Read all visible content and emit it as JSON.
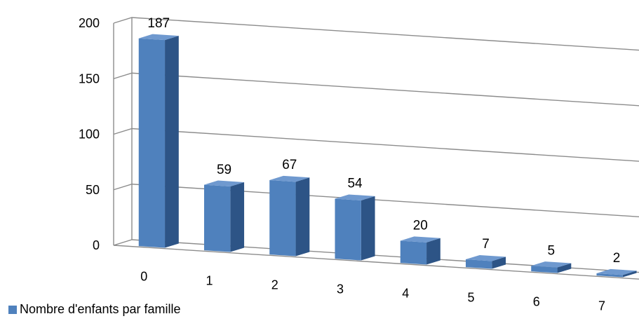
{
  "chart_data": {
    "type": "bar",
    "style": "3d-column",
    "categories": [
      "0",
      "1",
      "2",
      "3",
      "4",
      "5",
      "6",
      "7"
    ],
    "series": [
      {
        "name": "Nombre d'enfants par famille",
        "values": [
          187,
          59,
          67,
          54,
          20,
          7,
          5,
          2
        ]
      }
    ],
    "ylim": [
      0,
      200
    ],
    "yticks": [
      "0",
      "50",
      "100",
      "150",
      "200"
    ],
    "grid": true,
    "legend": "bottom-left",
    "colors": {
      "front": "#4F81BD",
      "side": "#2D5486",
      "top": "#6F99CF",
      "grid": "#8C8C8C"
    }
  }
}
